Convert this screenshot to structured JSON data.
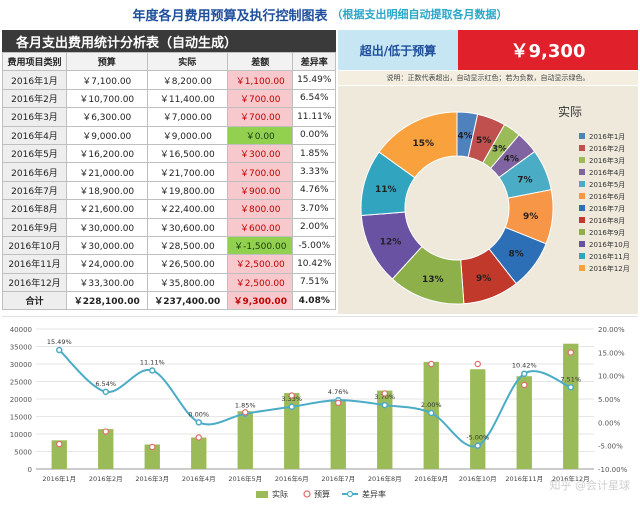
{
  "title": {
    "main": "年度各月费用预算及执行控制图表",
    "sub": "（根据支出明细自动提取各月数据）"
  },
  "stats_table": {
    "heading": "各月支出费用统计分析表（自动生成）",
    "columns": [
      "费用项目类别",
      "预算",
      "实际",
      "差额",
      "差异率"
    ],
    "rows": [
      {
        "month": "2016年1月",
        "budget": "￥7,100.00",
        "actual": "￥8,200.00",
        "diff": "￥1,100.00",
        "rate": "15.49%",
        "diff_type": "pos"
      },
      {
        "month": "2016年2月",
        "budget": "￥10,700.00",
        "actual": "￥11,400.00",
        "diff": "￥700.00",
        "rate": "6.54%",
        "diff_type": "pos"
      },
      {
        "month": "2016年3月",
        "budget": "￥6,300.00",
        "actual": "￥7,000.00",
        "diff": "￥700.00",
        "rate": "11.11%",
        "diff_type": "pos"
      },
      {
        "month": "2016年4月",
        "budget": "￥9,000.00",
        "actual": "￥9,000.00",
        "diff": "￥0.00",
        "rate": "0.00%",
        "diff_type": "zero"
      },
      {
        "month": "2016年5月",
        "budget": "￥16,200.00",
        "actual": "￥16,500.00",
        "diff": "￥300.00",
        "rate": "1.85%",
        "diff_type": "pos"
      },
      {
        "month": "2016年6月",
        "budget": "￥21,000.00",
        "actual": "￥21,700.00",
        "diff": "￥700.00",
        "rate": "3.33%",
        "diff_type": "pos"
      },
      {
        "month": "2016年7月",
        "budget": "￥18,900.00",
        "actual": "￥19,800.00",
        "diff": "￥900.00",
        "rate": "4.76%",
        "diff_type": "pos"
      },
      {
        "month": "2016年8月",
        "budget": "￥21,600.00",
        "actual": "￥22,400.00",
        "diff": "￥800.00",
        "rate": "3.70%",
        "diff_type": "pos"
      },
      {
        "month": "2016年9月",
        "budget": "￥30,000.00",
        "actual": "￥30,600.00",
        "diff": "￥600.00",
        "rate": "2.00%",
        "diff_type": "pos"
      },
      {
        "month": "2016年10月",
        "budget": "￥30,000.00",
        "actual": "￥28,500.00",
        "diff": "￥-1,500.00",
        "rate": "-5.00%",
        "diff_type": "neg"
      },
      {
        "month": "2016年11月",
        "budget": "￥24,000.00",
        "actual": "￥26,500.00",
        "diff": "￥2,500.00",
        "rate": "10.42%",
        "diff_type": "pos"
      },
      {
        "month": "2016年12月",
        "budget": "￥33,300.00",
        "actual": "￥35,800.00",
        "diff": "￥2,500.00",
        "rate": "7.51%",
        "diff_type": "pos"
      }
    ],
    "total": {
      "month": "合计",
      "budget": "￥228,100.00",
      "actual": "￥237,400.00",
      "diff": "￥9,300.00",
      "rate": "4.08%"
    }
  },
  "overrun": {
    "label": "超出/低于预算",
    "value": "￥9,300"
  },
  "note": "说明：正数代表超出，自动显示红色；若为负数，自动显示绿色。",
  "colors": {
    "pos_bg": "#f7c8cc",
    "pos_text": "#c00000",
    "neg_bg": "#92d050",
    "bar": "#9bbb59",
    "line": "#4bacc6",
    "budget_marker": "#e26b6b"
  },
  "chart_data": [
    {
      "type": "pie",
      "title": "实际",
      "categories": [
        "2016年1月",
        "2016年2月",
        "2016年3月",
        "2016年4月",
        "2016年5月",
        "2016年6月",
        "2016年7月",
        "2016年8月",
        "2016年9月",
        "2016年10月",
        "2016年11月",
        "2016年12月"
      ],
      "values": [
        8200,
        11400,
        7000,
        9000,
        16500,
        21700,
        19800,
        22400,
        30600,
        28500,
        26500,
        35800
      ],
      "labels": [
        "4%",
        "5%",
        "3%",
        "4%",
        "7%",
        "9%",
        "8%",
        "9%",
        "13%",
        "12%",
        "11%",
        "15%"
      ],
      "colors": [
        "#4f81bd",
        "#c0504d",
        "#9bbb59",
        "#8064a2",
        "#4bacc6",
        "#f79646",
        "#2c6fb6",
        "#c0392b",
        "#8db04a",
        "#6a52a3",
        "#31a5c0",
        "#f8a13d"
      ],
      "legend_position": "right"
    },
    {
      "type": "bar",
      "categories": [
        "2016年1月",
        "2016年2月",
        "2016年3月",
        "2016年4月",
        "2016年5月",
        "2016年6月",
        "2016年7月",
        "2016年8月",
        "2016年9月",
        "2016年10月",
        "2016年11月",
        "2016年12月"
      ],
      "series": [
        {
          "name": "实际",
          "type": "bar",
          "values": [
            8200,
            11400,
            7000,
            9000,
            16500,
            21700,
            19800,
            22400,
            30600,
            28500,
            26500,
            35800
          ]
        },
        {
          "name": "预算",
          "type": "scatter",
          "values": [
            7100,
            10700,
            6300,
            9000,
            16200,
            21000,
            18900,
            21600,
            30000,
            30000,
            24000,
            33300
          ]
        },
        {
          "name": "差异率",
          "type": "line",
          "axis": "right",
          "values": [
            15.49,
            6.54,
            11.11,
            0.0,
            1.85,
            3.33,
            4.76,
            3.7,
            2.0,
            -5.0,
            10.42,
            7.51
          ],
          "labels": [
            "15.49%",
            "6.54%",
            "11.11%",
            "0.00%",
            "1.85%",
            "3.33%",
            "4.76%",
            "3.70%",
            "2.00%",
            "-5.00%",
            "10.42%",
            "7.51%"
          ]
        }
      ],
      "y_ticks": [
        "0",
        "5000",
        "10000",
        "15000",
        "20000",
        "25000",
        "30000",
        "35000",
        "40000"
      ],
      "y2_ticks": [
        "-10.00%",
        "-5.00%",
        "0.00%",
        "5.00%",
        "10.00%",
        "15.00%",
        "20.00%"
      ],
      "ylim": [
        0,
        40000
      ],
      "y2lim": [
        -10,
        20
      ],
      "legend_position": "bottom"
    }
  ],
  "watermark": "知乎 @会计星球"
}
